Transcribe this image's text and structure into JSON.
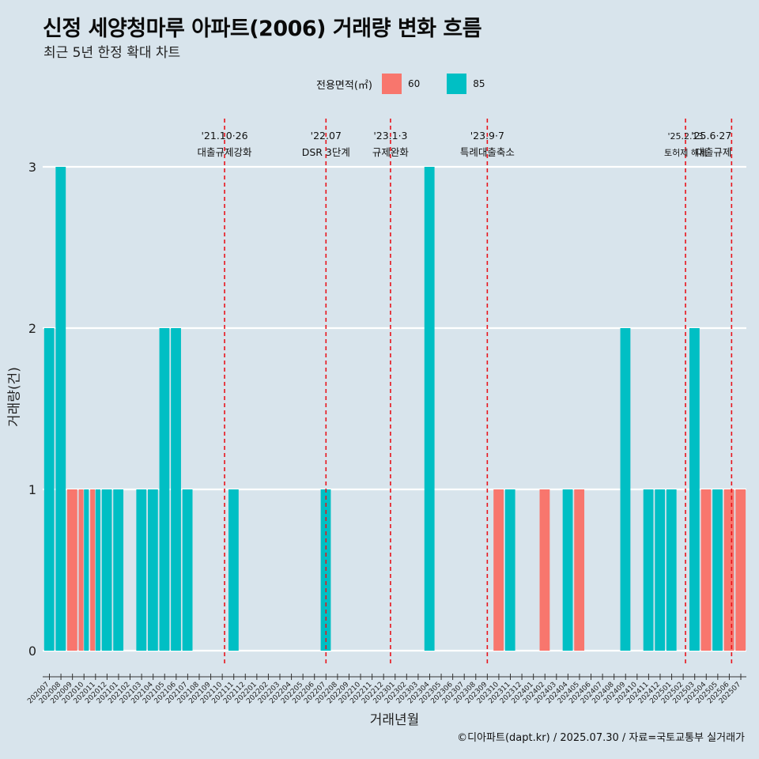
{
  "title": "신정 세양청마루 아파트(2006) 거래량 변화 흐름",
  "subtitle": "최근 5년 한정 확대 차트",
  "caption": "©디아파트(dapt.kr) / 2025.07.30 / 자료=국토교통부 실거래가",
  "colors": {
    "background": "#d8e4ec",
    "s60": "#f8766d",
    "s85": "#00bfc4",
    "event_line": "#e8141c"
  },
  "chart_data": {
    "type": "bar",
    "xlabel": "거래년월",
    "ylabel": "거래량(건)",
    "ylim": [
      0,
      3
    ],
    "yticks": [
      0,
      1,
      2,
      3
    ],
    "grid": true,
    "legend": {
      "title": "전용면적(㎡)",
      "position": "top",
      "entries": [
        "60",
        "85"
      ]
    },
    "categories": [
      "202007",
      "202008",
      "202009",
      "202010",
      "202011",
      "202012",
      "202101",
      "202102",
      "202103",
      "202104",
      "202105",
      "202106",
      "202107",
      "202108",
      "202109",
      "202110",
      "202111",
      "202112",
      "202201",
      "202202",
      "202203",
      "202204",
      "202205",
      "202206",
      "202207",
      "202208",
      "202209",
      "202210",
      "202211",
      "202212",
      "202301",
      "202302",
      "202303",
      "202304",
      "202305",
      "202306",
      "202307",
      "202308",
      "202309",
      "202310",
      "202311",
      "202312",
      "202401",
      "202402",
      "202403",
      "202404",
      "202405",
      "202406",
      "202407",
      "202408",
      "202409",
      "202410",
      "202411",
      "202412",
      "202501",
      "202502",
      "202503",
      "202504",
      "202505",
      "202506",
      "202507"
    ],
    "bars": [
      {
        "month": "202007",
        "area": "85",
        "value": 2
      },
      {
        "month": "202008",
        "area": "85",
        "value": 3
      },
      {
        "month": "202009",
        "area": "60",
        "value": 1
      },
      {
        "month": "202010",
        "area": "60",
        "value": 1
      },
      {
        "month": "202010",
        "area": "85",
        "value": 1
      },
      {
        "month": "202011",
        "area": "60",
        "value": 1
      },
      {
        "month": "202011",
        "area": "85",
        "value": 1
      },
      {
        "month": "202012",
        "area": "85",
        "value": 1
      },
      {
        "month": "202101",
        "area": "85",
        "value": 1
      },
      {
        "month": "202103",
        "area": "85",
        "value": 1
      },
      {
        "month": "202104",
        "area": "85",
        "value": 1
      },
      {
        "month": "202105",
        "area": "85",
        "value": 2
      },
      {
        "month": "202106",
        "area": "85",
        "value": 2
      },
      {
        "month": "202107",
        "area": "85",
        "value": 1
      },
      {
        "month": "202111",
        "area": "85",
        "value": 1
      },
      {
        "month": "202207",
        "area": "85",
        "value": 1
      },
      {
        "month": "202304",
        "area": "85",
        "value": 3
      },
      {
        "month": "202310",
        "area": "60",
        "value": 1
      },
      {
        "month": "202311",
        "area": "85",
        "value": 1
      },
      {
        "month": "202402",
        "area": "60",
        "value": 1
      },
      {
        "month": "202404",
        "area": "85",
        "value": 1
      },
      {
        "month": "202405",
        "area": "60",
        "value": 1
      },
      {
        "month": "202409",
        "area": "85",
        "value": 2
      },
      {
        "month": "202411",
        "area": "85",
        "value": 1
      },
      {
        "month": "202412",
        "area": "85",
        "value": 1
      },
      {
        "month": "202501",
        "area": "85",
        "value": 1
      },
      {
        "month": "202503",
        "area": "85",
        "value": 2
      },
      {
        "month": "202504",
        "area": "60",
        "value": 1
      },
      {
        "month": "202505",
        "area": "85",
        "value": 1
      },
      {
        "month": "202506",
        "area": "60",
        "value": 1
      },
      {
        "month": "202507",
        "area": "60",
        "value": 1
      }
    ],
    "events": [
      {
        "date": "'21.10·26",
        "label": "대출규제강화",
        "month": "202110",
        "offset": 0.2
      },
      {
        "date": "'22.07",
        "label": "DSR 3단계",
        "month": "202207",
        "offset": 0.0
      },
      {
        "date": "'23.1·3",
        "label": "규제완화",
        "month": "202301",
        "offset": -0.4
      },
      {
        "date": "'23.9·7",
        "label": "특례대출축소",
        "month": "202309",
        "offset": 0.0
      },
      {
        "date": "'25.2.13",
        "label": "토허제 해제",
        "month": "202502",
        "offset": 0.2
      },
      {
        "date": "'25.6·27",
        "label": "대출규제",
        "month": "202506",
        "offset": 0.2
      }
    ]
  }
}
